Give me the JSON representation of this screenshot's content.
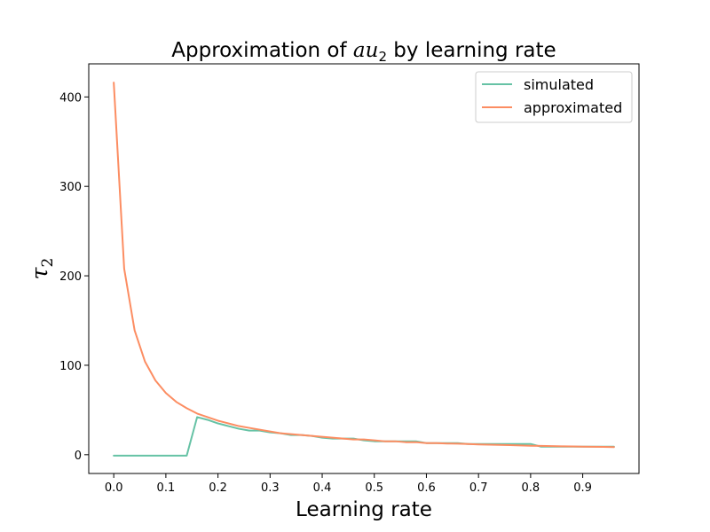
{
  "chart_data": {
    "type": "line",
    "title_prefix": "Approximation of ",
    "title_symbol": "au",
    "title_sub": "2",
    "title_suffix": " by learning rate",
    "xlabel": "Learning rate",
    "ylabel_symbol": "τ",
    "ylabel_sub": "2",
    "xlim": [
      -0.048,
      1.008
    ],
    "ylim": [
      -21.0,
      437.0
    ],
    "xticks": [
      0.0,
      0.1,
      0.2,
      0.3,
      0.4,
      0.5,
      0.6,
      0.7,
      0.8,
      0.9
    ],
    "xtick_labels": [
      "0.0",
      "0.1",
      "0.2",
      "0.3",
      "0.4",
      "0.5",
      "0.6",
      "0.7",
      "0.8",
      "0.9"
    ],
    "yticks": [
      0,
      100,
      200,
      300,
      400
    ],
    "ytick_labels": [
      "0",
      "100",
      "200",
      "300",
      "400"
    ],
    "grid": false,
    "legend_position": "upper right",
    "series": [
      {
        "name": "simulated",
        "color": "#66c2a5",
        "x": [
          0.0,
          0.02,
          0.04,
          0.06,
          0.08,
          0.1,
          0.12,
          0.14,
          0.16,
          0.18,
          0.2,
          0.22,
          0.24,
          0.26,
          0.28,
          0.3,
          0.32,
          0.34,
          0.36,
          0.38,
          0.4,
          0.42,
          0.44,
          0.46,
          0.48,
          0.5,
          0.52,
          0.54,
          0.56,
          0.58,
          0.6,
          0.62,
          0.64,
          0.66,
          0.68,
          0.7,
          0.72,
          0.74,
          0.76,
          0.78,
          0.8,
          0.82,
          0.84,
          0.86,
          0.88,
          0.9,
          0.92,
          0.94,
          0.96
        ],
        "y": [
          -1,
          -1,
          -1,
          -1,
          -1,
          -1,
          -1,
          -1,
          42,
          39,
          35,
          32,
          29,
          27,
          27,
          25,
          24,
          22,
          22,
          21,
          19,
          18,
          18,
          18,
          16,
          15,
          15,
          15,
          15,
          15,
          13,
          13,
          13,
          13,
          12,
          12,
          12,
          12,
          12,
          12,
          12,
          9,
          9,
          9,
          9,
          9,
          9,
          9,
          9
        ]
      },
      {
        "name": "approximated",
        "color": "#fc8d62",
        "x": [
          0.0,
          0.02,
          0.04,
          0.06,
          0.08,
          0.1,
          0.12,
          0.14,
          0.16,
          0.18,
          0.2,
          0.22,
          0.24,
          0.26,
          0.28,
          0.3,
          0.32,
          0.34,
          0.36,
          0.38,
          0.4,
          0.42,
          0.44,
          0.46,
          0.48,
          0.5,
          0.52,
          0.54,
          0.56,
          0.58,
          0.6,
          0.62,
          0.64,
          0.66,
          0.68,
          0.7,
          0.72,
          0.74,
          0.76,
          0.78,
          0.8,
          0.82,
          0.84,
          0.86,
          0.88,
          0.9,
          0.92,
          0.94,
          0.96
        ],
        "y": [
          416,
          208,
          139,
          104,
          83,
          69,
          59,
          52,
          46,
          42,
          38,
          35,
          32,
          30,
          28,
          26,
          24,
          23,
          22,
          21,
          20,
          19,
          18,
          17,
          17,
          16,
          15,
          15,
          14,
          14,
          13,
          13,
          12.5,
          12.3,
          12,
          11.5,
          11.2,
          11,
          10.7,
          10.4,
          10,
          9.8,
          9.6,
          9.4,
          9.2,
          9,
          8.9,
          8.7,
          8.5
        ]
      }
    ]
  }
}
